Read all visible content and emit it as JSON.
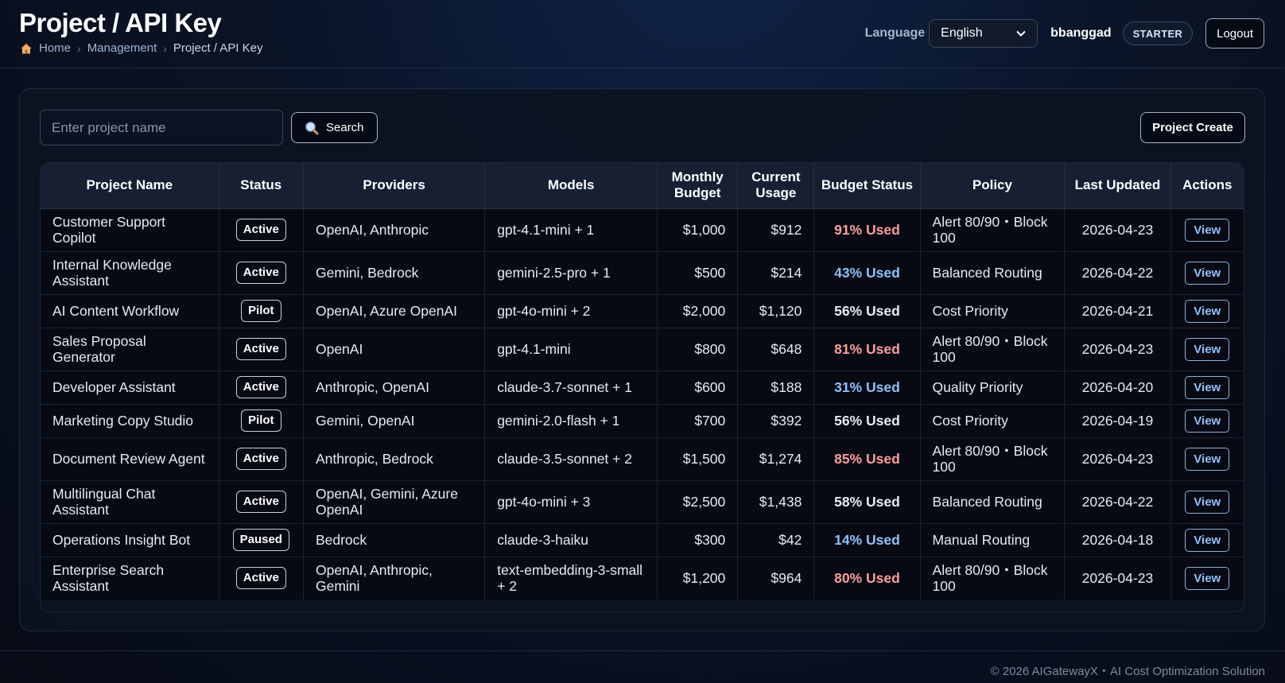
{
  "header": {
    "title": "Project / API Key",
    "breadcrumb": [
      "Home",
      "Management",
      "Project / API Key"
    ],
    "language_label": "Language",
    "language_value": "English",
    "username": "bbanggad",
    "plan": "STARTER",
    "logout_label": "Logout"
  },
  "toolbar": {
    "search_placeholder": "Enter project name",
    "search_label": "Search",
    "create_label": "Project Create"
  },
  "table": {
    "columns": [
      "Project Name",
      "Status",
      "Providers",
      "Models",
      "Monthly Budget",
      "Current Usage",
      "Budget Status",
      "Policy",
      "Last Updated",
      "Actions"
    ],
    "rows": [
      {
        "name": "Customer Support Copilot",
        "status": "Active",
        "providers": "OpenAI, Anthropic",
        "models": "gpt-4.1-mini + 1",
        "budget": "$1,000",
        "usage": "$912",
        "budget_status": "91% Used",
        "level": "high",
        "policy": "Alert 80/90・Block 100",
        "updated": "2026-04-23",
        "action": "View"
      },
      {
        "name": "Internal Knowledge Assistant",
        "status": "Active",
        "providers": "Gemini, Bedrock",
        "models": "gemini-2.5-pro + 1",
        "budget": "$500",
        "usage": "$214",
        "budget_status": "43% Used",
        "level": "low",
        "policy": "Balanced Routing",
        "updated": "2026-04-22",
        "action": "View"
      },
      {
        "name": "AI Content Workflow",
        "status": "Pilot",
        "providers": "OpenAI, Azure OpenAI",
        "models": "gpt-4o-mini + 2",
        "budget": "$2,000",
        "usage": "$1,120",
        "budget_status": "56% Used",
        "level": "mid",
        "policy": "Cost Priority",
        "updated": "2026-04-21",
        "action": "View"
      },
      {
        "name": "Sales Proposal Generator",
        "status": "Active",
        "providers": "OpenAI",
        "models": "gpt-4.1-mini",
        "budget": "$800",
        "usage": "$648",
        "budget_status": "81% Used",
        "level": "high",
        "policy": "Alert 80/90・Block 100",
        "updated": "2026-04-23",
        "action": "View"
      },
      {
        "name": "Developer Assistant",
        "status": "Active",
        "providers": "Anthropic, OpenAI",
        "models": "claude-3.7-sonnet + 1",
        "budget": "$600",
        "usage": "$188",
        "budget_status": "31% Used",
        "level": "low",
        "policy": "Quality Priority",
        "updated": "2026-04-20",
        "action": "View"
      },
      {
        "name": "Marketing Copy Studio",
        "status": "Pilot",
        "providers": "Gemini, OpenAI",
        "models": "gemini-2.0-flash + 1",
        "budget": "$700",
        "usage": "$392",
        "budget_status": "56% Used",
        "level": "mid",
        "policy": "Cost Priority",
        "updated": "2026-04-19",
        "action": "View"
      },
      {
        "name": "Document Review Agent",
        "status": "Active",
        "providers": "Anthropic, Bedrock",
        "models": "claude-3.5-sonnet + 2",
        "budget": "$1,500",
        "usage": "$1,274",
        "budget_status": "85% Used",
        "level": "high",
        "policy": "Alert 80/90・Block 100",
        "updated": "2026-04-23",
        "action": "View"
      },
      {
        "name": "Multilingual Chat Assistant",
        "status": "Active",
        "providers": "OpenAI, Gemini, Azure OpenAI",
        "models": "gpt-4o-mini + 3",
        "budget": "$2,500",
        "usage": "$1,438",
        "budget_status": "58% Used",
        "level": "mid",
        "policy": "Balanced Routing",
        "updated": "2026-04-22",
        "action": "View"
      },
      {
        "name": "Operations Insight Bot",
        "status": "Paused",
        "providers": "Bedrock",
        "models": "claude-3-haiku",
        "budget": "$300",
        "usage": "$42",
        "budget_status": "14% Used",
        "level": "low",
        "policy": "Manual Routing",
        "updated": "2026-04-18",
        "action": "View"
      },
      {
        "name": "Enterprise Search Assistant",
        "status": "Active",
        "providers": "OpenAI, Anthropic, Gemini",
        "models": "text-embedding-3-small + 2",
        "budget": "$1,200",
        "usage": "$964",
        "budget_status": "80% Used",
        "level": "high",
        "policy": "Alert 80/90・Block 100",
        "updated": "2026-04-23",
        "action": "View"
      }
    ]
  },
  "colors": {
    "high": "#ff9c9c",
    "mid": "#e6ebf5",
    "low": "#8ec1ff"
  },
  "footer": {
    "text": "© 2026 AIGatewayX・AI Cost Optimization Solution"
  }
}
